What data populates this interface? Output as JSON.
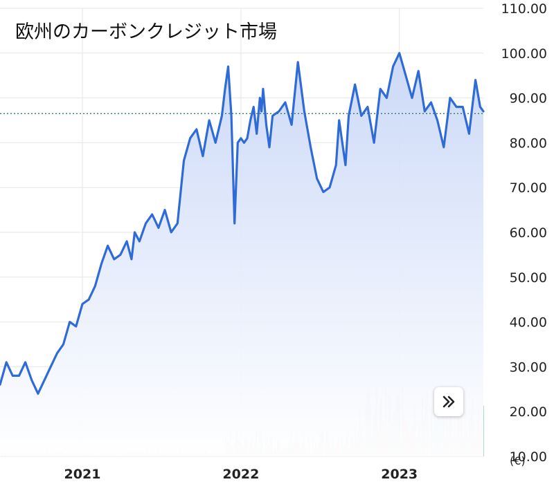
{
  "title": "欧州のカーボンクレジット市場",
  "unit_label": "(€)",
  "colors": {
    "line": "#2f6bd6",
    "area_top": "#c9d7f7",
    "area_bottom": "#ffffff",
    "grid": "#e6e6e6",
    "ref_line": "#1b6b6b",
    "vol_up": "#8cc7b7",
    "vol_down": "#f0a3a0"
  },
  "scroll_button": {
    "icon": "double-chevron-right-icon"
  },
  "chart_data": {
    "type": "area",
    "title": "欧州のカーボンクレジット市場",
    "y_tick_labels": [
      "110.00",
      "100.00",
      "90.00",
      "80.00",
      "70.00",
      "60.00",
      "50.00",
      "40.00",
      "30.00",
      "20.00",
      "10.00"
    ],
    "x_tick_labels": [
      "2021",
      "2022",
      "2023"
    ],
    "x_ticks": [
      2021.0,
      2022.0,
      2023.0
    ],
    "ylim": [
      10,
      110
    ],
    "xlim": [
      2020.48,
      2023.53
    ],
    "grid": true,
    "reference_value": 86.5,
    "series": [
      {
        "x": [
          2020.48,
          2020.52,
          2020.56,
          2020.6,
          2020.64,
          2020.68,
          2020.72,
          2020.76,
          2020.8,
          2020.84,
          2020.88,
          2020.92,
          2020.96,
          2021.0,
          2021.04,
          2021.08,
          2021.12,
          2021.16,
          2021.2,
          2021.24,
          2021.28,
          2021.31,
          2021.33,
          2021.36,
          2021.4,
          2021.44,
          2021.48,
          2021.52,
          2021.56,
          2021.6,
          2021.64,
          2021.68,
          2021.72,
          2021.76,
          2021.8,
          2021.84,
          2021.88,
          2021.9,
          2021.92,
          2021.94,
          2021.96,
          2021.98,
          2022.0,
          2022.02,
          2022.04,
          2022.06,
          2022.08,
          2022.1,
          2022.12,
          2022.13,
          2022.14,
          2022.16,
          2022.18,
          2022.2,
          2022.24,
          2022.28,
          2022.32,
          2022.36,
          2022.4,
          2022.44,
          2022.48,
          2022.52,
          2022.56,
          2022.6,
          2022.62,
          2022.64,
          2022.66,
          2022.68,
          2022.72,
          2022.76,
          2022.8,
          2022.84,
          2022.88,
          2022.92,
          2022.96,
          2023.0,
          2023.04,
          2023.08,
          2023.12,
          2023.16,
          2023.2,
          2023.24,
          2023.28,
          2023.32,
          2023.36,
          2023.4,
          2023.44,
          2023.48,
          2023.51,
          2023.53
        ],
        "y": [
          26,
          31,
          28,
          28,
          31,
          27,
          24,
          27,
          30,
          33,
          35,
          40,
          39,
          44,
          45,
          48,
          53,
          57,
          54,
          55,
          58,
          54,
          60,
          58,
          62,
          64,
          61,
          65,
          60,
          62,
          76,
          81,
          83,
          77,
          85,
          80,
          86,
          92,
          97,
          86,
          62,
          80,
          81,
          80,
          81,
          85,
          88,
          82,
          90,
          87,
          92,
          84,
          79,
          86,
          87,
          89,
          84,
          98,
          87,
          79,
          72,
          69,
          70,
          75,
          85,
          80,
          75,
          86,
          93,
          86,
          88,
          80,
          92,
          90,
          97,
          100,
          95,
          90,
          96,
          87,
          89,
          85,
          79,
          90,
          88,
          88,
          82,
          94,
          88,
          87
        ],
        "volume_max": 34
      }
    ]
  }
}
